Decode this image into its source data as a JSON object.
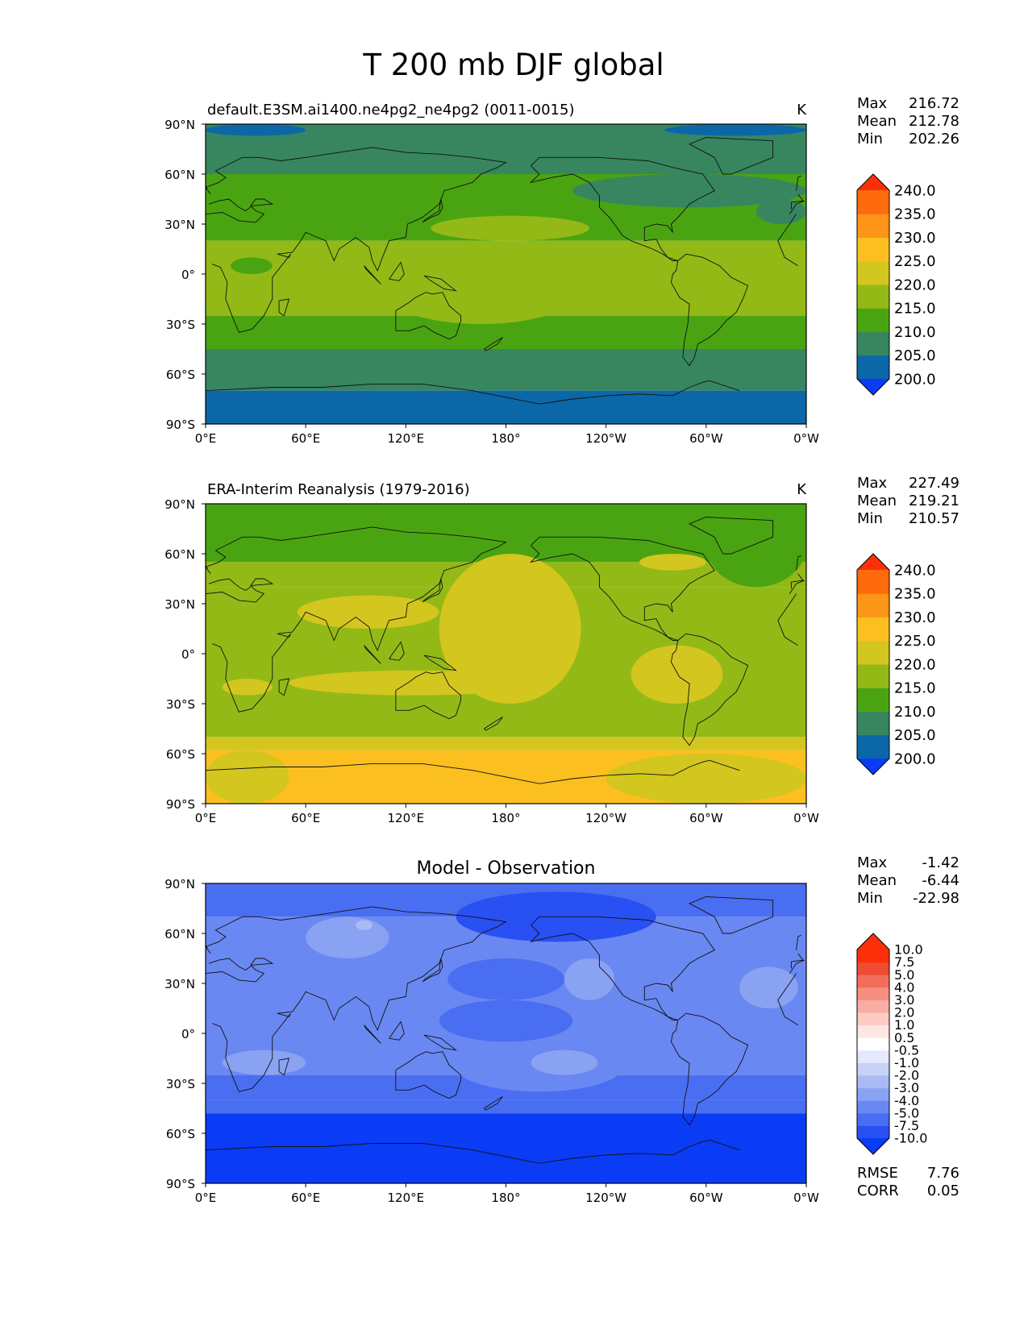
{
  "figure": {
    "title": "T 200 mb DJF global"
  },
  "chart_data": [
    {
      "type": "heatmap",
      "panel": "test",
      "title": "default.E3SM.ai1400.ne4pg2_ne4pg2 (0011-0015)",
      "units": "K",
      "stats": [
        {
          "label": "Max",
          "value": "216.72"
        },
        {
          "label": "Mean",
          "value": "212.78"
        },
        {
          "label": "Min",
          "value": "202.26"
        }
      ],
      "xticks": [
        "0°E",
        "60°E",
        "120°E",
        "180°",
        "120°W",
        "60°W",
        "0°W"
      ],
      "yticks": [
        "90°N",
        "60°N",
        "30°N",
        "0°",
        "30°S",
        "60°S",
        "90°S"
      ],
      "xlim": [
        0,
        360
      ],
      "ylim": [
        -90,
        90
      ],
      "levels": [
        200,
        205,
        210,
        215,
        220,
        225,
        230,
        235,
        240
      ],
      "colorbar_labels": [
        "240.0",
        "235.0",
        "230.0",
        "225.0",
        "220.0",
        "215.0",
        "210.0",
        "205.0",
        "200.0"
      ],
      "bin_colors": [
        "#0a3cf5",
        "#0b67a7",
        "#378660",
        "#4aa411",
        "#93b917",
        "#d3c61e",
        "#fbc020",
        "#fc9518",
        "#fd6b0c",
        "#fc2f0b"
      ],
      "zonal_bands": [
        {
          "lat_range": [
            60,
            90
          ],
          "value": 208
        },
        {
          "lat_range": [
            45,
            60
          ],
          "value": 211
        },
        {
          "lat_range": [
            20,
            45
          ],
          "value": 214
        },
        {
          "lat_range": [
            -25,
            20
          ],
          "value": 217
        },
        {
          "lat_range": [
            -45,
            -25
          ],
          "value": 214
        },
        {
          "lat_range": [
            -70,
            -45
          ],
          "value": 209
        },
        {
          "lat_range": [
            -90,
            -70
          ],
          "value": 204
        }
      ],
      "features": [
        {
          "lon": [
            0,
            60
          ],
          "lat": [
            83,
            90
          ],
          "value": 204
        },
        {
          "lon": [
            275,
            360
          ],
          "lat": [
            83,
            90
          ],
          "value": 204
        },
        {
          "lon": [
            220,
            360
          ],
          "lat": [
            40,
            60
          ],
          "value": 209
        },
        {
          "lon": [
            330,
            360
          ],
          "lat": [
            30,
            45
          ],
          "value": 209
        },
        {
          "lon": [
            15,
            40
          ],
          "lat": [
            0,
            10
          ],
          "value": 213
        },
        {
          "lon": [
            100,
            230
          ],
          "lat": [
            -30,
            20
          ],
          "value": 218
        },
        {
          "lon": [
            135,
            230
          ],
          "lat": [
            20,
            35
          ],
          "value": 218
        }
      ]
    },
    {
      "type": "heatmap",
      "panel": "reference",
      "title": "ERA-Interim Reanalysis (1979-2016)",
      "units": "K",
      "stats": [
        {
          "label": "Max",
          "value": "227.49"
        },
        {
          "label": "Mean",
          "value": "219.21"
        },
        {
          "label": "Min",
          "value": "210.57"
        }
      ],
      "xticks": [
        "0°E",
        "60°E",
        "120°E",
        "180°",
        "120°W",
        "60°W",
        "0°W"
      ],
      "yticks": [
        "90°N",
        "60°N",
        "30°N",
        "0°",
        "30°S",
        "60°S",
        "90°S"
      ],
      "xlim": [
        0,
        360
      ],
      "ylim": [
        -90,
        90
      ],
      "levels": [
        200,
        205,
        210,
        215,
        220,
        225,
        230,
        235,
        240
      ],
      "colorbar_labels": [
        "240.0",
        "235.0",
        "230.0",
        "225.0",
        "220.0",
        "215.0",
        "210.0",
        "205.0",
        "200.0"
      ],
      "bin_colors": [
        "#0a3cf5",
        "#0b67a7",
        "#378660",
        "#4aa411",
        "#93b917",
        "#d3c61e",
        "#fbc020",
        "#fc9518",
        "#fd6b0c",
        "#fc2f0b"
      ],
      "zonal_bands": [
        {
          "lat_range": [
            55,
            90
          ],
          "value": 214
        },
        {
          "lat_range": [
            40,
            55
          ],
          "value": 216
        },
        {
          "lat_range": [
            -50,
            40
          ],
          "value": 218
        },
        {
          "lat_range": [
            -58,
            -50
          ],
          "value": 222
        },
        {
          "lat_range": [
            -90,
            -58
          ],
          "value": 226
        }
      ],
      "features": [
        {
          "lon": [
            140,
            225
          ],
          "lat": [
            -30,
            60
          ],
          "value": 222
        },
        {
          "lon": [
            55,
            140
          ],
          "lat": [
            15,
            35
          ],
          "value": 222
        },
        {
          "lon": [
            50,
            200
          ],
          "lat": [
            -25,
            -10
          ],
          "value": 222
        },
        {
          "lon": [
            260,
            300
          ],
          "lat": [
            50,
            60
          ],
          "value": 222
        },
        {
          "lon": [
            255,
            310
          ],
          "lat": [
            -30,
            5
          ],
          "value": 222
        },
        {
          "lon": [
            10,
            40
          ],
          "lat": [
            -25,
            -15
          ],
          "value": 222
        },
        {
          "lon": [
            300,
            360
          ],
          "lat": [
            40,
            90
          ],
          "value": 214
        },
        {
          "lon": [
            0,
            50
          ],
          "lat": [
            -90,
            -58
          ],
          "value": 222
        },
        {
          "lon": [
            240,
            360
          ],
          "lat": [
            -90,
            -60
          ],
          "value": 222
        }
      ]
    },
    {
      "type": "heatmap",
      "panel": "difference",
      "title": "Model - Observation",
      "units": "",
      "stats": [
        {
          "label": "Max",
          "value": "-1.42"
        },
        {
          "label": "Mean",
          "value": "-6.44"
        },
        {
          "label": "Min",
          "value": "-22.98"
        }
      ],
      "extra_stats": [
        {
          "label": "RMSE",
          "value": "7.76"
        },
        {
          "label": "CORR",
          "value": "0.05"
        }
      ],
      "xticks": [
        "0°E",
        "60°E",
        "120°E",
        "180°",
        "120°W",
        "60°W",
        "0°W"
      ],
      "yticks": [
        "90°N",
        "60°N",
        "30°N",
        "0°",
        "30°S",
        "60°S",
        "90°S"
      ],
      "xlim": [
        0,
        360
      ],
      "ylim": [
        -90,
        90
      ],
      "levels": [
        -10,
        -7.5,
        -5,
        -4,
        -3,
        -2,
        -1,
        -0.5,
        0.5,
        1,
        2,
        3,
        4,
        5,
        7.5,
        10
      ],
      "colorbar_labels": [
        "10.0",
        "7.5",
        "5.0",
        "4.0",
        "3.0",
        "2.0",
        "1.0",
        "0.5",
        "-0.5",
        "-1.0",
        "-2.0",
        "-3.0",
        "-4.0",
        "-5.0",
        "-7.5",
        "-10.0"
      ],
      "bin_colors": [
        "#0a3cf5",
        "#2850f3",
        "#4a6ef2",
        "#6a88f1",
        "#8aa2f2",
        "#a9baf4",
        "#c8d2f7",
        "#e4e9fb",
        "#ffffff",
        "#fde6e3",
        "#fbcbc4",
        "#f9aea3",
        "#f68f80",
        "#f26e5b",
        "#f04b33",
        "#fc2f0b",
        "#fc2f0b"
      ],
      "zonal_bands": [
        {
          "lat_range": [
            70,
            90
          ],
          "value": -6.2
        },
        {
          "lat_range": [
            30,
            70
          ],
          "value": -4.5
        },
        {
          "lat_range": [
            -25,
            30
          ],
          "value": -4.5
        },
        {
          "lat_range": [
            -40,
            -25
          ],
          "value": -5.5
        },
        {
          "lat_range": [
            -48,
            -40
          ],
          "value": -7
        },
        {
          "lat_range": [
            -90,
            -48
          ],
          "value": -12
        }
      ],
      "features": [
        {
          "lon": [
            150,
            270
          ],
          "lat": [
            55,
            85
          ],
          "value": -8
        },
        {
          "lon": [
            60,
            110
          ],
          "lat": [
            45,
            70
          ],
          "value": -3.5
        },
        {
          "lon": [
            90,
            100
          ],
          "lat": [
            62,
            68
          ],
          "value": -2.5
        },
        {
          "lon": [
            145,
            215
          ],
          "lat": [
            20,
            45
          ],
          "value": -6
        },
        {
          "lon": [
            140,
            220
          ],
          "lat": [
            -5,
            20
          ],
          "value": -5.5
        },
        {
          "lon": [
            150,
            250
          ],
          "lat": [
            -35,
            -5
          ],
          "value": -4.5
        },
        {
          "lon": [
            195,
            235
          ],
          "lat": [
            -25,
            -10
          ],
          "value": -3.5
        },
        {
          "lon": [
            215,
            245
          ],
          "lat": [
            20,
            45
          ],
          "value": -3.5
        },
        {
          "lon": [
            320,
            355
          ],
          "lat": [
            15,
            40
          ],
          "value": -3.5
        },
        {
          "lon": [
            300,
            360
          ],
          "lat": [
            -25,
            0
          ],
          "value": -4.5
        },
        {
          "lon": [
            10,
            60
          ],
          "lat": [
            -25,
            -10
          ],
          "value": -3.5
        }
      ]
    }
  ]
}
